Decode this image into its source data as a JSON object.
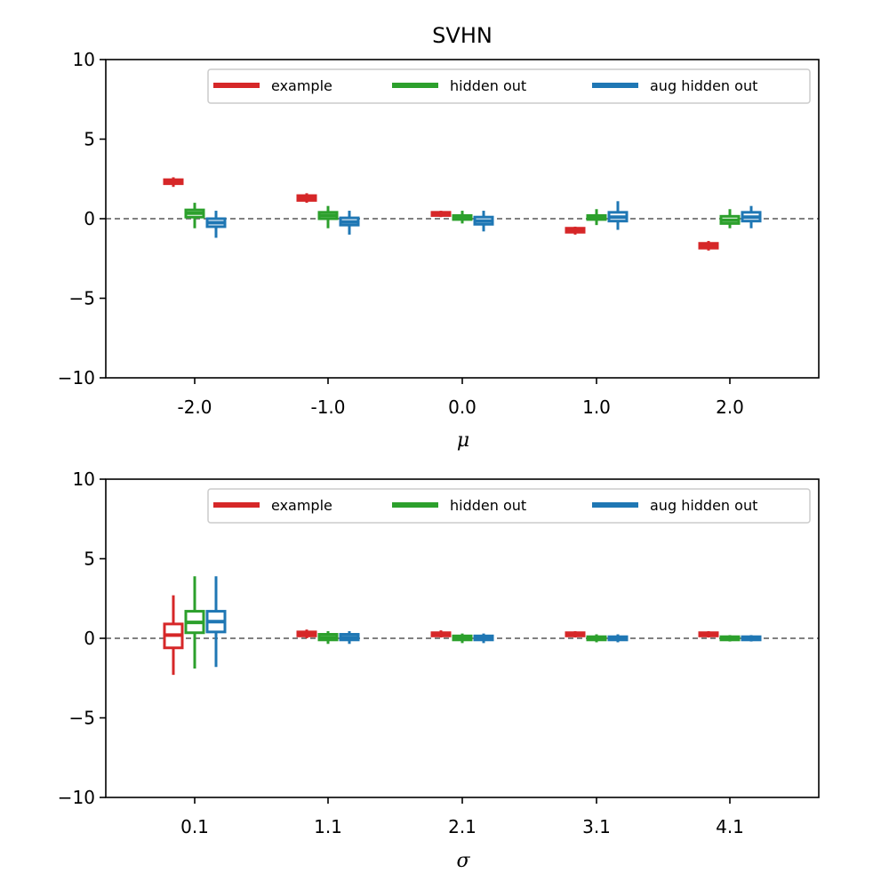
{
  "figure": {
    "title": "SVHN"
  },
  "colors": {
    "example": "#d62728",
    "hidden_out": "#2ca02c",
    "aug_hidden_out": "#1f77b4",
    "zero_line": "#808080"
  },
  "chart_data": [
    {
      "type": "boxplot",
      "title": "SVHN",
      "xlabel": "μ",
      "ylabel": "",
      "ylim": [
        -10,
        10
      ],
      "yticks": [
        -10,
        -5,
        0,
        5,
        10
      ],
      "ytick_labels": [
        "−10",
        "−5",
        "0",
        "5",
        "10"
      ],
      "categories": [
        "-2.0",
        "-1.0",
        "0.0",
        "1.0",
        "2.0"
      ],
      "reference_line": 0,
      "grid": false,
      "legend_position": "top-right",
      "series": [
        {
          "name": "example",
          "color": "#d62728",
          "boxes": [
            {
              "whislo": 2.0,
              "q1": 2.2,
              "med": 2.3,
              "q3": 2.45,
              "whishi": 2.6
            },
            {
              "whislo": 1.0,
              "q1": 1.15,
              "med": 1.3,
              "q3": 1.45,
              "whishi": 1.6
            },
            {
              "whislo": 0.1,
              "q1": 0.2,
              "med": 0.3,
              "q3": 0.4,
              "whishi": 0.5
            },
            {
              "whislo": -1.0,
              "q1": -0.85,
              "med": -0.75,
              "q3": -0.6,
              "whishi": -0.5
            },
            {
              "whislo": -2.0,
              "q1": -1.85,
              "med": -1.7,
              "q3": -1.55,
              "whishi": -1.4
            }
          ]
        },
        {
          "name": "hidden out",
          "color": "#2ca02c",
          "boxes": [
            {
              "whislo": -0.6,
              "q1": 0.1,
              "med": 0.35,
              "q3": 0.55,
              "whishi": 1.0
            },
            {
              "whislo": -0.6,
              "q1": 0.0,
              "med": 0.2,
              "q3": 0.4,
              "whishi": 0.8
            },
            {
              "whislo": -0.3,
              "q1": -0.05,
              "med": 0.1,
              "q3": 0.2,
              "whishi": 0.5
            },
            {
              "whislo": -0.4,
              "q1": -0.05,
              "med": 0.05,
              "q3": 0.2,
              "whishi": 0.6
            },
            {
              "whislo": -0.6,
              "q1": -0.3,
              "med": -0.1,
              "q3": 0.15,
              "whishi": 0.6
            }
          ]
        },
        {
          "name": "aug hidden out",
          "color": "#1f77b4",
          "boxes": [
            {
              "whislo": -1.2,
              "q1": -0.5,
              "med": -0.25,
              "q3": 0.0,
              "whishi": 0.5
            },
            {
              "whislo": -1.0,
              "q1": -0.4,
              "med": -0.2,
              "q3": 0.05,
              "whishi": 0.5
            },
            {
              "whislo": -0.8,
              "q1": -0.35,
              "med": -0.15,
              "q3": 0.1,
              "whishi": 0.5
            },
            {
              "whislo": -0.7,
              "q1": -0.15,
              "med": 0.1,
              "q3": 0.4,
              "whishi": 1.1
            },
            {
              "whislo": -0.6,
              "q1": -0.15,
              "med": 0.1,
              "q3": 0.4,
              "whishi": 0.8
            }
          ]
        }
      ]
    },
    {
      "type": "boxplot",
      "title": "",
      "xlabel": "σ",
      "ylabel": "",
      "ylim": [
        -10,
        10
      ],
      "yticks": [
        -10,
        -5,
        0,
        5,
        10
      ],
      "ytick_labels": [
        "−10",
        "−5",
        "0",
        "5",
        "10"
      ],
      "categories": [
        "0.1",
        "1.1",
        "2.1",
        "3.1",
        "4.1"
      ],
      "reference_line": 0,
      "grid": false,
      "legend_position": "top-right",
      "series": [
        {
          "name": "example",
          "color": "#d62728",
          "boxes": [
            {
              "whislo": -2.3,
              "q1": -0.6,
              "med": 0.2,
              "q3": 0.9,
              "whishi": 2.7
            },
            {
              "whislo": 0.0,
              "q1": 0.15,
              "med": 0.25,
              "q3": 0.4,
              "whishi": 0.55
            },
            {
              "whislo": 0.05,
              "q1": 0.15,
              "med": 0.25,
              "q3": 0.35,
              "whishi": 0.5
            },
            {
              "whislo": 0.05,
              "q1": 0.15,
              "med": 0.25,
              "q3": 0.35,
              "whishi": 0.45
            },
            {
              "whislo": 0.05,
              "q1": 0.15,
              "med": 0.25,
              "q3": 0.35,
              "whishi": 0.45
            }
          ]
        },
        {
          "name": "hidden out",
          "color": "#2ca02c",
          "boxes": [
            {
              "whislo": -1.9,
              "q1": 0.35,
              "med": 1.0,
              "q3": 1.7,
              "whishi": 3.9
            },
            {
              "whislo": -0.35,
              "q1": -0.1,
              "med": 0.05,
              "q3": 0.25,
              "whishi": 0.45
            },
            {
              "whislo": -0.3,
              "q1": -0.1,
              "med": 0.0,
              "q3": 0.15,
              "whishi": 0.3
            },
            {
              "whislo": -0.25,
              "q1": -0.1,
              "med": 0.0,
              "q3": 0.1,
              "whishi": 0.25
            },
            {
              "whislo": -0.2,
              "q1": -0.1,
              "med": 0.0,
              "q3": 0.1,
              "whishi": 0.2
            }
          ]
        },
        {
          "name": "aug hidden out",
          "color": "#1f77b4",
          "boxes": [
            {
              "whislo": -1.8,
              "q1": 0.4,
              "med": 1.05,
              "q3": 1.7,
              "whishi": 3.9
            },
            {
              "whislo": -0.35,
              "q1": -0.1,
              "med": 0.05,
              "q3": 0.25,
              "whishi": 0.45
            },
            {
              "whislo": -0.3,
              "q1": -0.1,
              "med": 0.0,
              "q3": 0.15,
              "whishi": 0.3
            },
            {
              "whislo": -0.25,
              "q1": -0.1,
              "med": 0.0,
              "q3": 0.1,
              "whishi": 0.25
            },
            {
              "whislo": -0.2,
              "q1": -0.1,
              "med": 0.0,
              "q3": 0.1,
              "whishi": 0.2
            }
          ]
        }
      ]
    }
  ]
}
